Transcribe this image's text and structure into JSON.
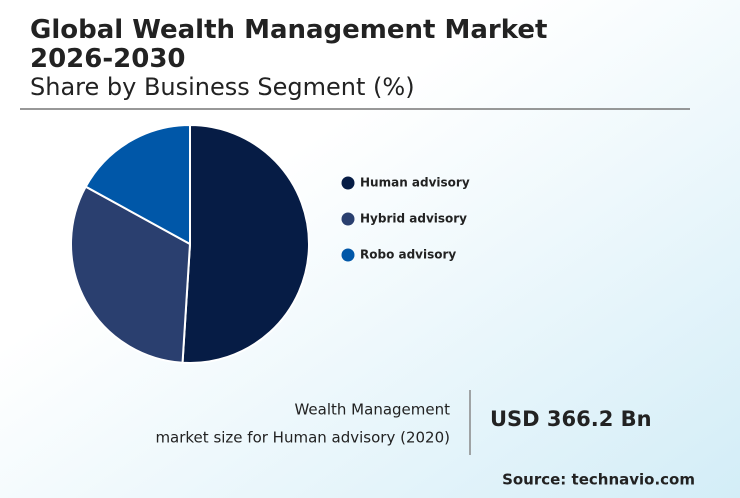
{
  "chart_data": {
    "type": "pie",
    "title": "Global Wealth Management Market 2026-2030",
    "subtitle": "Share by Business Segment (%)",
    "categories": [
      "Human advisory",
      "Hybrid advisory",
      "Robo advisory"
    ],
    "values": [
      51,
      32,
      17
    ],
    "colors": [
      "#061c45",
      "#2a3f6f",
      "#0057a8"
    ]
  },
  "info": {
    "label_lines": [
      "Wealth Management",
      "market size for Human advisory (2020)"
    ],
    "value": "USD 366.2 Bn",
    "source": "Source: technavio.com"
  }
}
